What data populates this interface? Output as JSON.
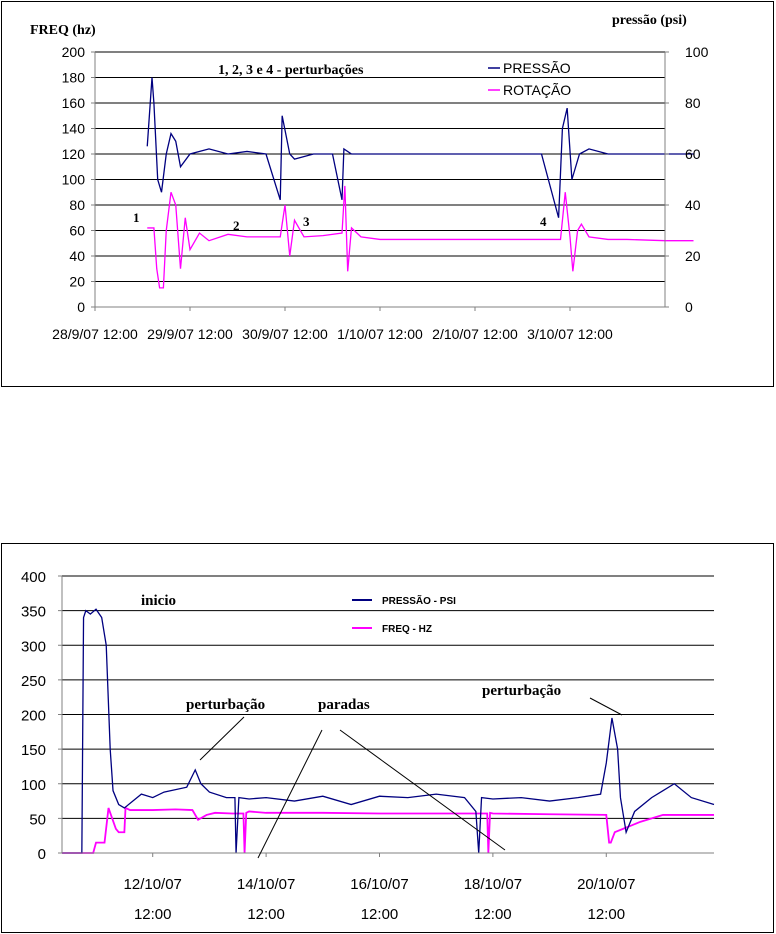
{
  "colors": {
    "pressure": "#000080",
    "rotation": "#ff00ff",
    "grid": "#000000",
    "axis": "#808080"
  },
  "chart_data": [
    {
      "type": "line",
      "y_label_left": "FREQ (hz)",
      "y_label_right": "pressão (psi)",
      "annotation": "1, 2, 3 e 4 - perturbações",
      "x_ticks": [
        "28/9/07 12:00",
        "29/9/07 12:00",
        "30/9/07 12:00",
        "1/10/07 12:00",
        "2/10/07 12:00",
        "3/10/07 12:00"
      ],
      "x_range_days": [
        0,
        6
      ],
      "ylim_left": [
        0,
        200
      ],
      "ylim_right": [
        0,
        100
      ],
      "yticks_left": [
        "0",
        "20",
        "40",
        "60",
        "80",
        "100",
        "120",
        "140",
        "160",
        "180",
        "200"
      ],
      "yticks_right": [
        "0",
        "20",
        "40",
        "60",
        "80",
        "100"
      ],
      "grid": "horizontal",
      "legend_position": "top-right",
      "series": [
        {
          "name": "PRESSÃO",
          "axis": "right",
          "x": [
            0.55,
            0.6,
            0.62,
            0.66,
            0.7,
            0.75,
            0.8,
            0.85,
            0.9,
            1.0,
            1.2,
            1.4,
            1.6,
            1.8,
            1.95,
            1.97,
            2.05,
            2.1,
            2.3,
            2.5,
            2.6,
            2.62,
            2.7,
            2.9,
            3.1,
            3.3,
            3.5,
            3.7,
            3.9,
            4.1,
            4.3,
            4.5,
            4.7,
            4.88,
            4.92,
            4.97,
            5.02,
            5.1,
            5.2,
            5.4,
            5.6,
            5.8,
            6.0,
            6.3
          ],
          "y": [
            63,
            90,
            80,
            50,
            45,
            60,
            68,
            65,
            55,
            60,
            62,
            60,
            61,
            60,
            42,
            75,
            60,
            58,
            60,
            60,
            42,
            62,
            60,
            60,
            60,
            60,
            60,
            60,
            60,
            60,
            60,
            60,
            60,
            35,
            70,
            78,
            50,
            60,
            62,
            60,
            60,
            60,
            60,
            60
          ]
        },
        {
          "name": "ROTAÇÃO",
          "axis": "left",
          "x": [
            0.55,
            0.62,
            0.65,
            0.68,
            0.72,
            0.75,
            0.8,
            0.85,
            0.9,
            0.95,
            1.0,
            1.1,
            1.2,
            1.4,
            1.6,
            1.8,
            1.95,
            2.0,
            2.05,
            2.1,
            2.2,
            2.4,
            2.6,
            2.63,
            2.66,
            2.7,
            2.8,
            3.0,
            3.5,
            4.0,
            4.5,
            4.9,
            4.95,
            5.0,
            5.03,
            5.08,
            5.12,
            5.2,
            5.4,
            5.6,
            6.0,
            6.3
          ],
          "y": [
            62,
            62,
            30,
            15,
            15,
            60,
            90,
            80,
            30,
            70,
            45,
            58,
            52,
            57,
            55,
            55,
            55,
            80,
            40,
            68,
            55,
            56,
            58,
            95,
            28,
            62,
            55,
            53,
            53,
            53,
            53,
            53,
            90,
            55,
            28,
            60,
            65,
            55,
            53,
            53,
            52,
            52
          ]
        }
      ],
      "labels": [
        "1",
        "2",
        "3",
        "4"
      ]
    },
    {
      "type": "line",
      "x_ticks": [
        "12/10/07\n12:00",
        "14/10/07\n12:00",
        "16/10/07\n12:00",
        "18/10/07\n12:00",
        "20/10/07\n12:00"
      ],
      "x_ticks_line1": [
        "12/10/07",
        "14/10/07",
        "16/10/07",
        "18/10/07",
        "20/10/07"
      ],
      "x_ticks_line2": [
        "12:00",
        "12:00",
        "12:00",
        "12:00",
        "12:00"
      ],
      "ylim": [
        0,
        400
      ],
      "yticks": [
        "0",
        "50",
        "100",
        "150",
        "200",
        "250",
        "300",
        "350",
        "400"
      ],
      "grid": "horizontal",
      "legend_position": "top-right",
      "annotations": [
        "inicio",
        "perturbação",
        "paradas",
        "perturbação"
      ],
      "series": [
        {
          "name": "PRESSÃO - PSI",
          "x": [
            10.4,
            10.75,
            10.78,
            10.82,
            10.9,
            11.0,
            11.1,
            11.18,
            11.25,
            11.3,
            11.4,
            11.5,
            11.8,
            12.0,
            12.2,
            12.6,
            12.75,
            12.85,
            13.0,
            13.3,
            13.45,
            13.47,
            13.52,
            13.7,
            14.0,
            14.5,
            15.0,
            15.5,
            16.0,
            16.5,
            17.0,
            17.5,
            17.7,
            17.75,
            17.8,
            18.0,
            18.5,
            19.0,
            19.5,
            19.9,
            20.0,
            20.1,
            20.2,
            20.25,
            20.35,
            20.5,
            20.8,
            21.0,
            21.2,
            21.5,
            21.9
          ],
          "y": [
            0,
            0,
            340,
            350,
            345,
            352,
            340,
            300,
            150,
            90,
            70,
            65,
            85,
            80,
            88,
            95,
            120,
            100,
            88,
            80,
            80,
            0,
            80,
            78,
            80,
            75,
            82,
            70,
            82,
            80,
            85,
            80,
            60,
            0,
            80,
            78,
            80,
            75,
            80,
            85,
            130,
            195,
            150,
            80,
            30,
            60,
            80,
            90,
            100,
            80,
            70
          ]
        },
        {
          "name": "FREQ - HZ",
          "x": [
            10.4,
            10.95,
            11.0,
            11.08,
            11.1,
            11.15,
            11.22,
            11.35,
            11.4,
            11.45,
            11.5,
            11.52,
            11.6,
            12.0,
            12.4,
            12.7,
            12.8,
            12.95,
            13.1,
            13.4,
            13.6,
            13.62,
            13.65,
            13.7,
            14.0,
            15.0,
            16.0,
            17.0,
            17.9,
            17.92,
            17.95,
            18.0,
            19.0,
            20.0,
            20.05,
            20.08,
            20.15,
            20.3,
            20.45,
            20.6,
            20.8,
            21.0,
            21.9
          ],
          "y": [
            0,
            0,
            15,
            15,
            15,
            15,
            65,
            35,
            30,
            30,
            30,
            65,
            62,
            62,
            63,
            62,
            48,
            55,
            58,
            57,
            57,
            0,
            58,
            60,
            58,
            58,
            57,
            57,
            57,
            0,
            58,
            57,
            56,
            55,
            15,
            15,
            30,
            35,
            40,
            45,
            50,
            55,
            55
          ]
        }
      ]
    }
  ]
}
